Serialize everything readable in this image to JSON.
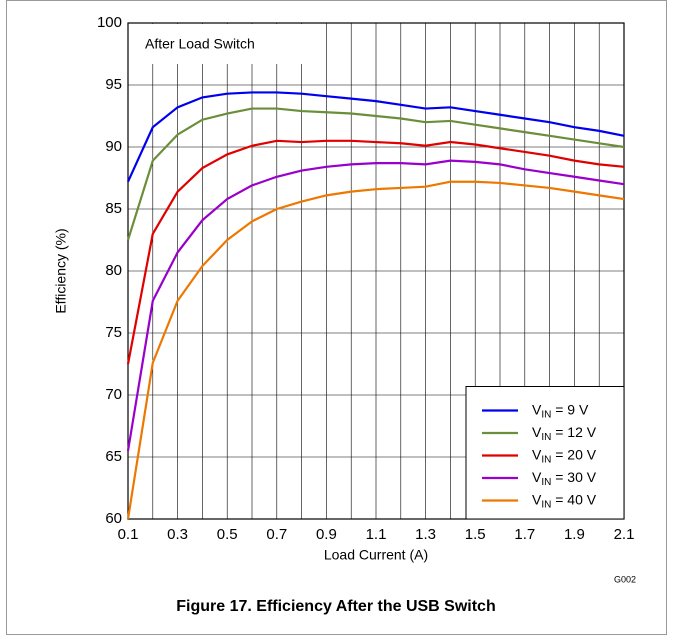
{
  "chart_data": {
    "type": "line",
    "annotation": "After Load Switch",
    "x_label": "Load Current (A)",
    "y_label": "Efficiency (%)",
    "figure_id": "G002",
    "caption": "Figure 17. Efficiency After the USB Switch",
    "x": [
      0.1,
      0.2,
      0.3,
      0.4,
      0.5,
      0.6,
      0.7,
      0.8,
      0.9,
      1.0,
      1.1,
      1.2,
      1.3,
      1.4,
      1.5,
      1.6,
      1.7,
      1.8,
      1.9,
      2.0,
      2.1
    ],
    "series": [
      {
        "name": "VIN = 9 V",
        "color": "#0000ee",
        "values": [
          87.2,
          91.6,
          93.2,
          94.0,
          94.3,
          94.4,
          94.4,
          94.3,
          94.1,
          93.9,
          93.7,
          93.4,
          93.1,
          93.2,
          92.9,
          92.6,
          92.3,
          92.0,
          91.6,
          91.3,
          90.9
        ]
      },
      {
        "name": "VIN = 12 V",
        "color": "#6b8e3a",
        "values": [
          82.5,
          88.9,
          91.0,
          92.2,
          92.7,
          93.1,
          93.1,
          92.9,
          92.8,
          92.7,
          92.5,
          92.3,
          92.0,
          92.1,
          91.8,
          91.5,
          91.2,
          90.9,
          90.6,
          90.3,
          90.0
        ]
      },
      {
        "name": "VIN = 20 V",
        "color": "#e00000",
        "values": [
          72.5,
          83.0,
          86.4,
          88.3,
          89.4,
          90.1,
          90.5,
          90.4,
          90.5,
          90.5,
          90.4,
          90.3,
          90.1,
          90.4,
          90.2,
          89.9,
          89.6,
          89.3,
          88.9,
          88.6,
          88.4
        ]
      },
      {
        "name": "VIN = 30 V",
        "color": "#9900cc",
        "values": [
          65.5,
          77.6,
          81.5,
          84.1,
          85.8,
          86.9,
          87.6,
          88.1,
          88.4,
          88.6,
          88.7,
          88.7,
          88.6,
          88.9,
          88.8,
          88.6,
          88.2,
          87.9,
          87.6,
          87.3,
          87.0
        ]
      },
      {
        "name": "VIN = 40 V",
        "color": "#ee7700",
        "values": [
          60,
          72.6,
          77.6,
          80.4,
          82.5,
          84.0,
          85.0,
          85.6,
          86.1,
          86.4,
          86.6,
          86.7,
          86.8,
          87.2,
          87.2,
          87.1,
          86.9,
          86.7,
          86.4,
          86.1,
          85.8
        ]
      }
    ],
    "xlim": [
      0.1,
      2.1
    ],
    "ylim": [
      60,
      100
    ],
    "xticks": [
      0.1,
      0.3,
      0.5,
      0.7,
      0.9,
      1.1,
      1.3,
      1.5,
      1.7,
      1.9,
      2.1
    ],
    "xminor_grid": [
      0.2,
      0.4,
      0.6,
      0.8,
      1.0,
      1.2,
      1.4,
      1.6,
      1.8,
      2.0
    ],
    "yticks": [
      60,
      65,
      70,
      75,
      80,
      85,
      90,
      95,
      100
    ],
    "grid": true,
    "legend": "lower right"
  }
}
